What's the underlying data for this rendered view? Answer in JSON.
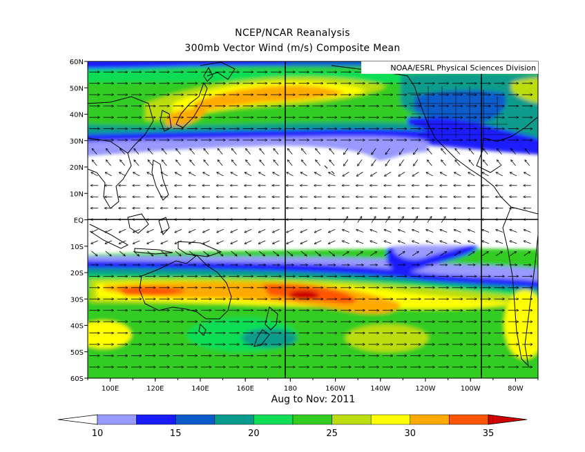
{
  "title_line1": "NCEP/NCAR Reanalysis",
  "title_line2": "300mb Vector Wind (m/s) Composite Mean",
  "credit": "NOAA/ESRL Physical Sciences Division",
  "period": "Aug to Nov: 2011",
  "map": {
    "lon_range": [
      90,
      290
    ],
    "lat_range": [
      -60,
      60
    ],
    "lat_labels": [
      "60N",
      "50N",
      "40N",
      "30N",
      "20N",
      "10N",
      "EQ",
      "10S",
      "20S",
      "30S",
      "40S",
      "50S",
      "60S"
    ],
    "lon_labels": [
      "100E",
      "120E",
      "140E",
      "160E",
      "180",
      "160W",
      "140W",
      "120W",
      "100W",
      "80W"
    ],
    "reference_lines": {
      "equator": "EQ",
      "dateline": "180",
      "meridian": "90W"
    }
  },
  "colorbar": {
    "labels": [
      "10",
      "15",
      "20",
      "25",
      "30",
      "35"
    ],
    "colors": [
      "#ffffff",
      "#9999ff",
      "#1a1aff",
      "#0a5ccc",
      "#089c8c",
      "#11dd55",
      "#33cc22",
      "#bbdd11",
      "#ffff00",
      "#ffaa00",
      "#ff5500",
      "#cc0000"
    ]
  },
  "chart_data": {
    "type": "heatmap",
    "variable": "300mb Vector Wind (m/s)",
    "contour_levels": [
      10,
      12.5,
      15,
      17.5,
      20,
      22.5,
      25,
      27.5,
      30,
      32.5,
      35
    ],
    "features": [
      {
        "region": "North Pacific jet core near 40N-45N, 170E-180",
        "speed_ms": 30
      },
      {
        "region": "Japan / Sea of Japan",
        "speed_ms": 30
      },
      {
        "region": "South Pacific subtropical jet near 28S, 170W",
        "speed_ms": 35
      },
      {
        "region": "Southern Australia / Tasman Sea band near 30S",
        "speed_ms": 27.5
      },
      {
        "region": "Tropics between 20N and 15S",
        "speed_ms": 10
      },
      {
        "region": "Central USA near 40N-45N, 100W",
        "speed_ms": 15
      }
    ]
  }
}
